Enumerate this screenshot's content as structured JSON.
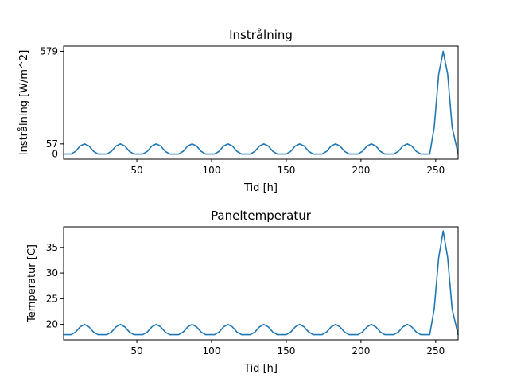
{
  "chart_data": [
    {
      "type": "line",
      "title": "Instrålning",
      "xlabel": "Tid [h]",
      "ylabel": "Instrålning [W/m^2]",
      "xlim": [
        1,
        265
      ],
      "ylim": [
        -28.9,
        607.9
      ],
      "x_ticks": [
        50,
        100,
        150,
        200,
        250
      ],
      "y_ticks": [
        0,
        57,
        579
      ],
      "grid": false,
      "series_color": "#1f77b4",
      "baseline": 0,
      "peak_small": 57,
      "peak_large": 579,
      "series": [
        {
          "x": [
            1,
            3,
            6,
            9,
            12,
            15,
            18,
            21,
            24,
            27,
            30,
            33,
            36,
            39,
            42,
            45,
            48,
            51,
            54,
            57,
            60,
            63,
            66,
            69,
            72,
            75,
            78,
            81,
            84,
            87,
            90,
            93,
            96,
            99,
            102,
            105,
            108,
            111,
            114,
            117,
            120,
            123,
            126,
            129,
            132,
            135,
            138,
            141,
            144,
            147,
            150,
            153,
            156,
            159,
            162,
            165,
            168,
            171,
            174,
            177,
            180,
            183,
            186,
            189,
            192,
            195,
            198,
            201,
            204,
            207,
            210,
            213,
            216,
            219,
            222,
            225,
            228,
            231,
            234,
            237,
            240,
            243,
            246,
            249,
            252,
            255,
            258,
            261,
            265
          ],
          "y": [
            0,
            0,
            0,
            15,
            45,
            57,
            45,
            15,
            0,
            0,
            0,
            15,
            45,
            57,
            45,
            15,
            0,
            0,
            0,
            15,
            45,
            57,
            45,
            15,
            0,
            0,
            0,
            15,
            45,
            57,
            45,
            15,
            0,
            0,
            0,
            15,
            45,
            57,
            45,
            15,
            0,
            0,
            0,
            15,
            45,
            57,
            45,
            15,
            0,
            0,
            0,
            15,
            45,
            57,
            45,
            15,
            0,
            0,
            0,
            15,
            45,
            57,
            45,
            15,
            0,
            0,
            0,
            15,
            45,
            57,
            45,
            15,
            0,
            0,
            0,
            15,
            45,
            57,
            45,
            15,
            0,
            0,
            0,
            150,
            450,
            579,
            450,
            150,
            0
          ]
        }
      ]
    },
    {
      "type": "line",
      "title": "Paneltemperatur",
      "xlabel": "Tid [h]",
      "ylabel": "Temperatur [C]",
      "xlim": [
        1,
        265
      ],
      "ylim": [
        17,
        39
      ],
      "x_ticks": [
        50,
        100,
        150,
        200,
        250
      ],
      "y_ticks": [
        20,
        25,
        30,
        35
      ],
      "grid": false,
      "series_color": "#1f77b4",
      "baseline": 18,
      "peak_small": 20,
      "peak_large": 38.2,
      "series": [
        {
          "x": [
            1,
            3,
            6,
            9,
            12,
            15,
            18,
            21,
            24,
            27,
            30,
            33,
            36,
            39,
            42,
            45,
            48,
            51,
            54,
            57,
            60,
            63,
            66,
            69,
            72,
            75,
            78,
            81,
            84,
            87,
            90,
            93,
            96,
            99,
            102,
            105,
            108,
            111,
            114,
            117,
            120,
            123,
            126,
            129,
            132,
            135,
            138,
            141,
            144,
            147,
            150,
            153,
            156,
            159,
            162,
            165,
            168,
            171,
            174,
            177,
            180,
            183,
            186,
            189,
            192,
            195,
            198,
            201,
            204,
            207,
            210,
            213,
            216,
            219,
            222,
            225,
            228,
            231,
            234,
            237,
            240,
            243,
            246,
            249,
            252,
            255,
            258,
            261,
            265
          ],
          "y": [
            18,
            18,
            18,
            18.5,
            19.5,
            20,
            19.5,
            18.5,
            18,
            18,
            18,
            18.5,
            19.5,
            20,
            19.5,
            18.5,
            18,
            18,
            18,
            18.5,
            19.5,
            20,
            19.5,
            18.5,
            18,
            18,
            18,
            18.5,
            19.5,
            20,
            19.5,
            18.5,
            18,
            18,
            18,
            18.5,
            19.5,
            20,
            19.5,
            18.5,
            18,
            18,
            18,
            18.5,
            19.5,
            20,
            19.5,
            18.5,
            18,
            18,
            18,
            18.5,
            19.5,
            20,
            19.5,
            18.5,
            18,
            18,
            18,
            18.5,
            19.5,
            20,
            19.5,
            18.5,
            18,
            18,
            18,
            18.5,
            19.5,
            20,
            19.5,
            18.5,
            18,
            18,
            18,
            18.5,
            19.5,
            20,
            19.5,
            18.5,
            18,
            18,
            18,
            23,
            33,
            38.2,
            33,
            23,
            18
          ]
        }
      ]
    }
  ]
}
